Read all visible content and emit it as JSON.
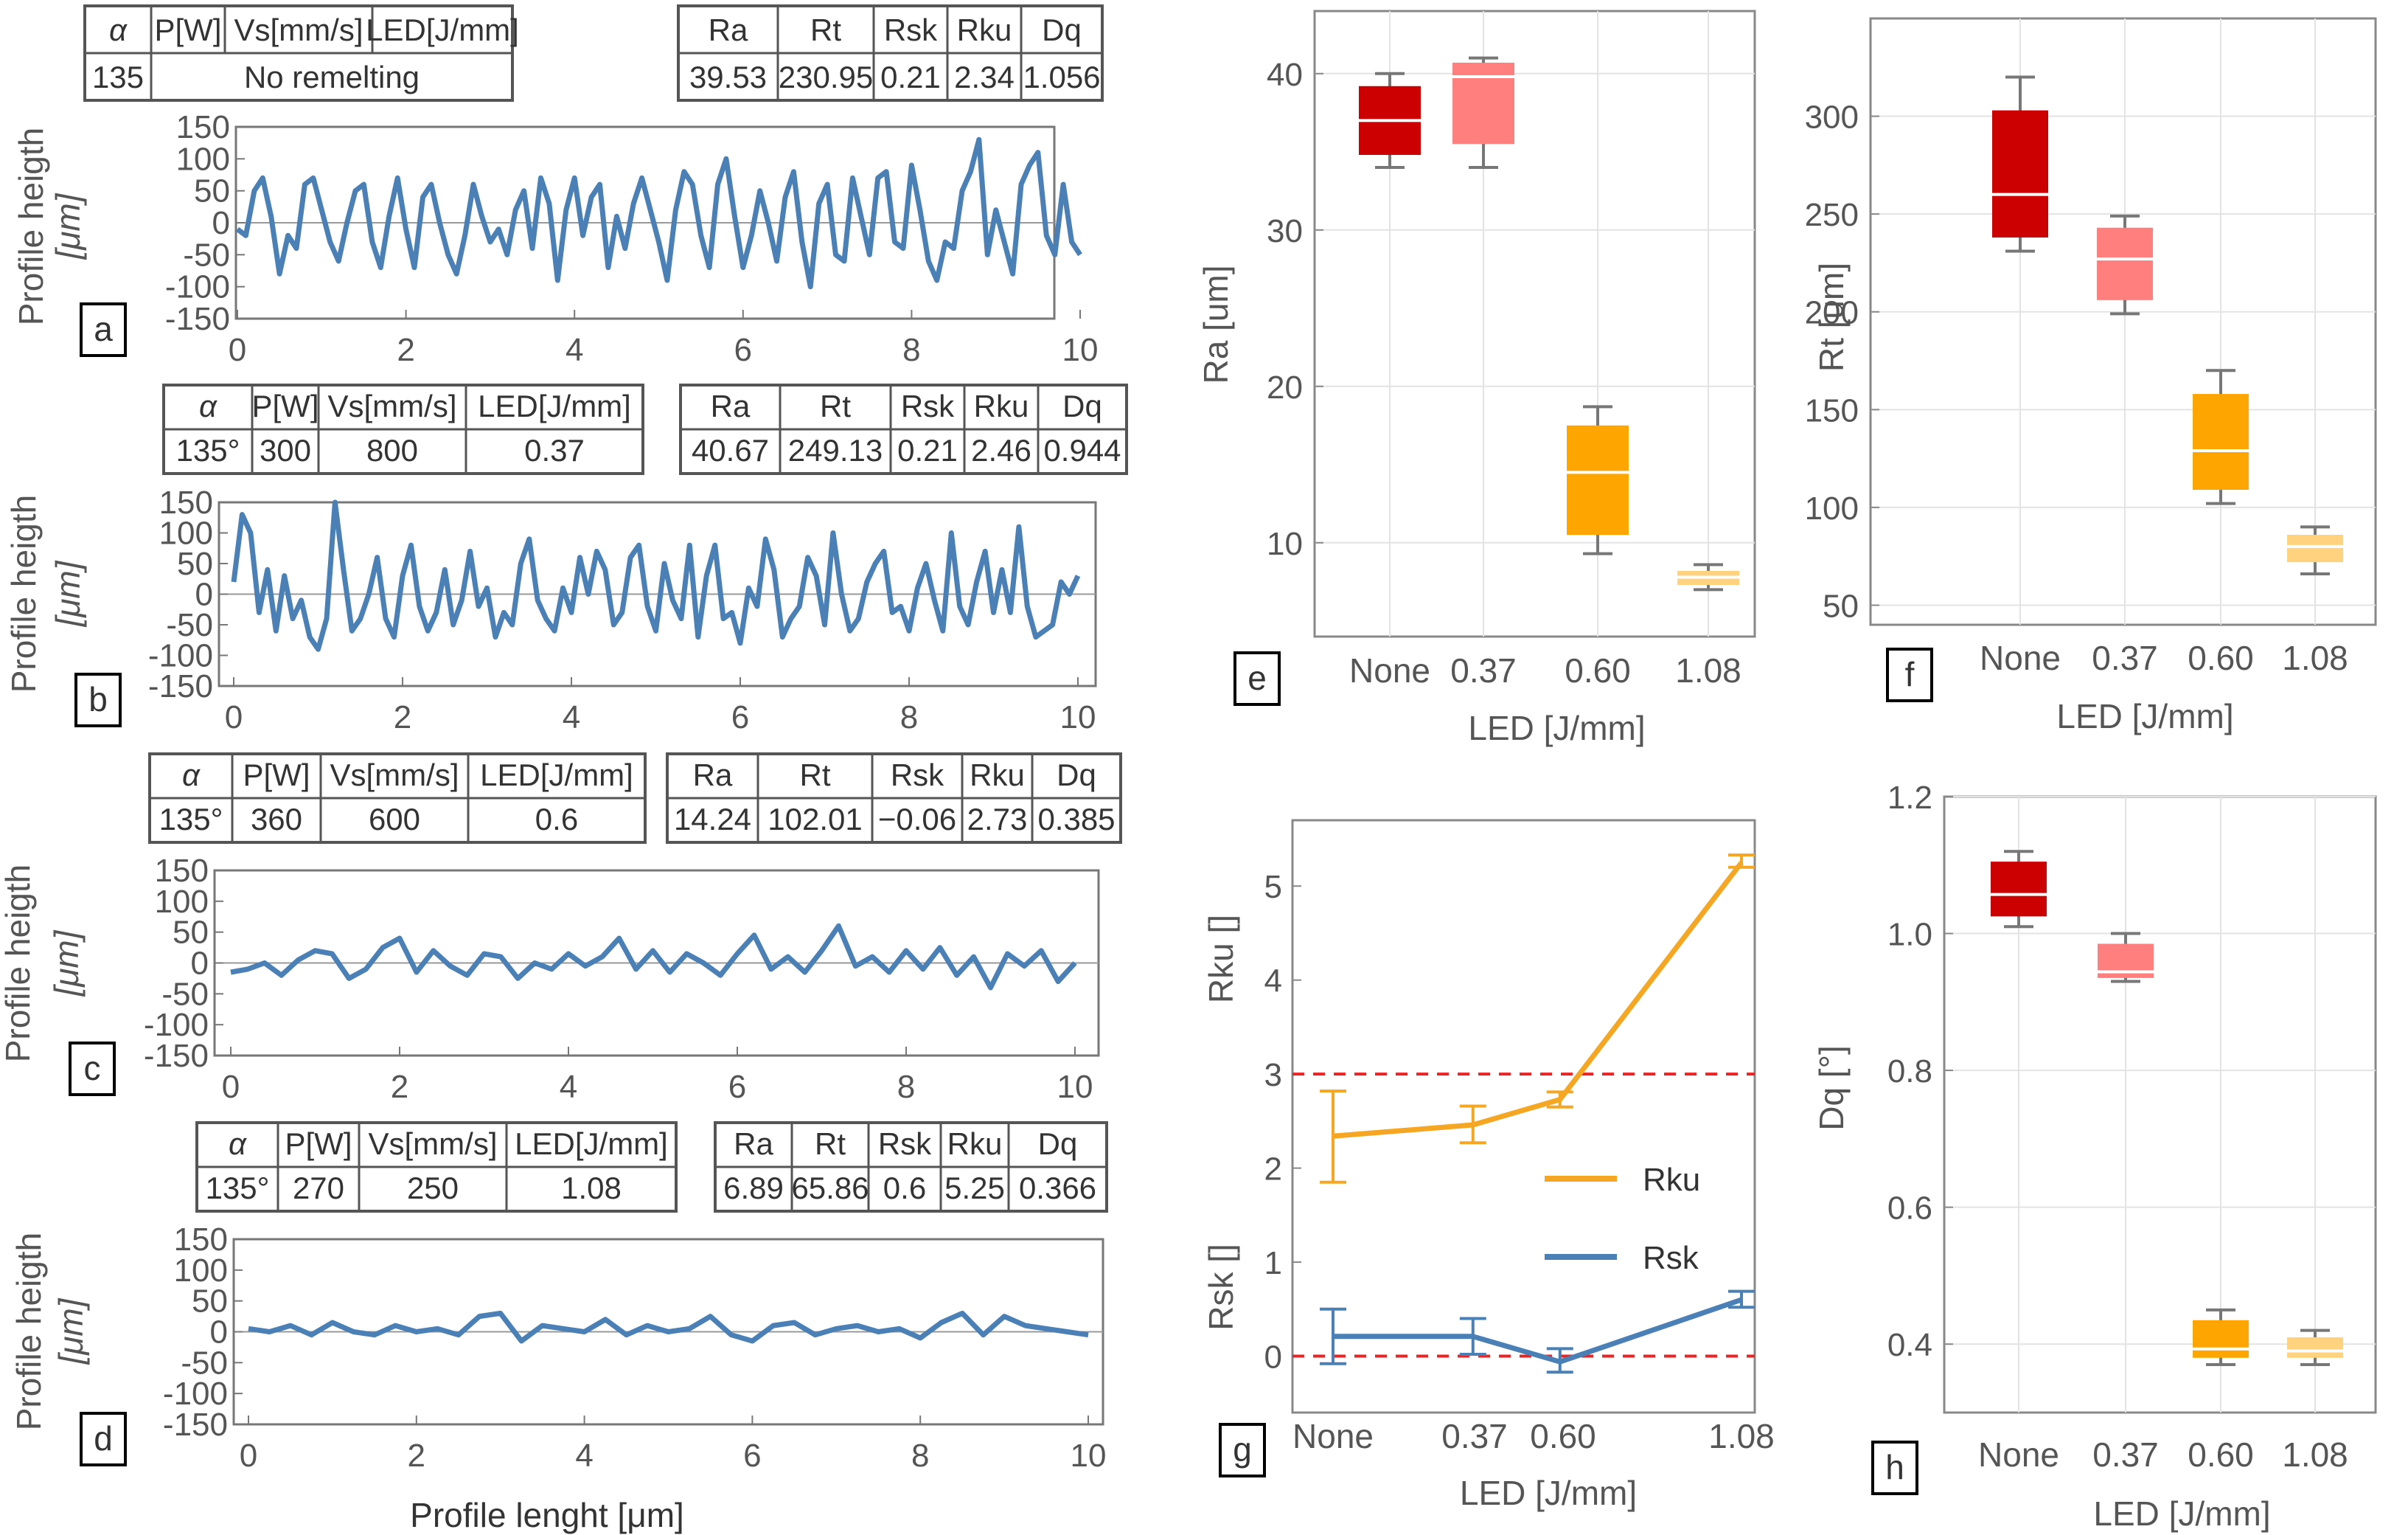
{
  "chart_data": [
    {
      "id": "a",
      "type": "line",
      "panel_label": "a",
      "table_left": {
        "row1": [
          "α",
          "P[W]",
          "Vs[mm/s]",
          "LED[J/mm]"
        ],
        "row2": [
          "135",
          "No remelting"
        ]
      },
      "table_right": {
        "row1": [
          "Ra",
          "Rt",
          "Rsk",
          "Rku",
          "Dq"
        ],
        "row2": [
          "39.53",
          "230.95",
          "0.21",
          "2.34",
          "1.056"
        ]
      },
      "ylabel_line1": "Profile heigth",
      "ylabel_line2": "[μm]",
      "xlim": [
        0,
        10
      ],
      "ylim": [
        -150,
        150
      ],
      "yticks": [
        "150",
        "100",
        "50",
        "0",
        "-50",
        "-100",
        "-150"
      ],
      "xticks": [
        "0",
        "2",
        "4",
        "6",
        "8",
        "10"
      ],
      "series": [
        {
          "name": "profile",
          "color": "#4a80b5",
          "x": [
            0,
            0.1,
            0.2,
            0.3,
            0.4,
            0.5,
            0.6,
            0.7,
            0.8,
            0.9,
            1,
            1.1,
            1.2,
            1.3,
            1.4,
            1.5,
            1.6,
            1.7,
            1.8,
            1.9,
            2,
            2.1,
            2.2,
            2.3,
            2.4,
            2.5,
            2.6,
            2.7,
            2.8,
            2.9,
            3,
            3.1,
            3.2,
            3.3,
            3.4,
            3.5,
            3.6,
            3.7,
            3.8,
            3.9,
            4,
            4.1,
            4.2,
            4.3,
            4.4,
            4.5,
            4.6,
            4.7,
            4.8,
            4.9,
            5,
            5.1,
            5.2,
            5.3,
            5.4,
            5.5,
            5.6,
            5.7,
            5.8,
            5.9,
            6,
            6.1,
            6.2,
            6.3,
            6.4,
            6.5,
            6.6,
            6.7,
            6.8,
            6.9,
            7,
            7.1,
            7.2,
            7.3,
            7.4,
            7.5,
            7.6,
            7.7,
            7.8,
            7.9,
            8,
            8.1,
            8.2,
            8.3,
            8.4,
            8.5,
            8.6,
            8.7,
            8.8,
            8.9,
            9,
            9.1,
            9.2,
            9.3,
            9.4,
            9.5,
            9.6,
            9.7,
            9.8,
            9.9,
            10
          ],
          "y": [
            -10,
            -20,
            50,
            70,
            10,
            -80,
            -20,
            -40,
            60,
            70,
            20,
            -30,
            -60,
            0,
            50,
            60,
            -30,
            -70,
            10,
            70,
            -10,
            -70,
            40,
            60,
            0,
            -50,
            -80,
            -20,
            60,
            10,
            -30,
            -10,
            -50,
            20,
            50,
            -40,
            70,
            30,
            -90,
            20,
            70,
            -20,
            40,
            60,
            -70,
            10,
            -40,
            30,
            70,
            20,
            -30,
            -90,
            20,
            80,
            60,
            -20,
            -70,
            60,
            100,
            10,
            -70,
            -20,
            50,
            0,
            -60,
            40,
            80,
            -30,
            -100,
            30,
            60,
            -50,
            -60,
            70,
            10,
            -50,
            70,
            80,
            -30,
            -40,
            90,
            20,
            -60,
            -90,
            -30,
            -40,
            50,
            80,
            130,
            -50,
            20,
            -30,
            -80,
            60,
            90,
            110,
            -20,
            -50,
            60,
            -30,
            -50
          ]
        }
      ]
    },
    {
      "id": "b",
      "type": "line",
      "panel_label": "b",
      "table_left": {
        "row1": [
          "α",
          "P[W]",
          "Vs[mm/s]",
          "LED[J/mm]"
        ],
        "row2": [
          "135°",
          "300",
          "800",
          "0.37"
        ]
      },
      "table_right": {
        "row1": [
          "Ra",
          "Rt",
          "Rsk",
          "Rku",
          "Dq"
        ],
        "row2": [
          "40.67",
          "249.13",
          "0.21",
          "2.46",
          "0.944"
        ]
      },
      "ylabel_line1": "Profile heigth",
      "ylabel_line2": "[μm]",
      "xlim": [
        0,
        10
      ],
      "ylim": [
        -150,
        150
      ],
      "yticks": [
        "150",
        "100",
        "50",
        "0",
        "-50",
        "-100",
        "-150"
      ],
      "xticks": [
        "0",
        "2",
        "4",
        "6",
        "8",
        "10"
      ],
      "series": [
        {
          "name": "profile",
          "color": "#4a80b5",
          "x": [
            0,
            0.1,
            0.2,
            0.3,
            0.4,
            0.5,
            0.6,
            0.7,
            0.8,
            0.9,
            1,
            1.1,
            1.2,
            1.3,
            1.4,
            1.5,
            1.6,
            1.7,
            1.8,
            1.9,
            2,
            2.1,
            2.2,
            2.3,
            2.4,
            2.5,
            2.6,
            2.7,
            2.8,
            2.9,
            3,
            3.1,
            3.2,
            3.3,
            3.4,
            3.5,
            3.6,
            3.7,
            3.8,
            3.9,
            4,
            4.1,
            4.2,
            4.3,
            4.4,
            4.5,
            4.6,
            4.7,
            4.8,
            4.9,
            5,
            5.1,
            5.2,
            5.3,
            5.4,
            5.5,
            5.6,
            5.7,
            5.8,
            5.9,
            6,
            6.1,
            6.2,
            6.3,
            6.4,
            6.5,
            6.6,
            6.7,
            6.8,
            6.9,
            7,
            7.1,
            7.2,
            7.3,
            7.4,
            7.5,
            7.6,
            7.7,
            7.8,
            7.9,
            8,
            8.1,
            8.2,
            8.3,
            8.4,
            8.5,
            8.6,
            8.7,
            8.8,
            8.9,
            9,
            9.1,
            9.2,
            9.3,
            9.4,
            9.5,
            9.6,
            9.7,
            9.8,
            9.9,
            10
          ],
          "y": [
            20,
            130,
            100,
            -30,
            40,
            -60,
            30,
            -40,
            -10,
            -70,
            -90,
            -40,
            150,
            40,
            -60,
            -40,
            0,
            60,
            -40,
            -70,
            30,
            80,
            -20,
            -60,
            -30,
            40,
            -50,
            -10,
            70,
            -20,
            10,
            -70,
            -30,
            -50,
            50,
            90,
            -10,
            -40,
            -60,
            10,
            -30,
            60,
            0,
            70,
            40,
            -50,
            -30,
            60,
            80,
            -20,
            -60,
            50,
            -10,
            -40,
            80,
            -70,
            30,
            80,
            -40,
            -30,
            -80,
            10,
            -20,
            90,
            40,
            -70,
            -40,
            -20,
            60,
            30,
            -50,
            100,
            0,
            -60,
            -40,
            20,
            50,
            70,
            -30,
            -20,
            -60,
            10,
            50,
            -10,
            -60,
            100,
            -20,
            -50,
            20,
            70,
            -30,
            40,
            -30,
            110,
            -20,
            -70,
            -60,
            -50,
            20,
            0,
            30
          ]
        }
      ]
    },
    {
      "id": "c",
      "type": "line",
      "panel_label": "c",
      "table_left": {
        "row1": [
          "α",
          "P[W]",
          "Vs[mm/s]",
          "LED[J/mm]"
        ],
        "row2": [
          "135°",
          "360",
          "600",
          "0.6"
        ]
      },
      "table_right": {
        "row1": [
          "Ra",
          "Rt",
          "Rsk",
          "Rku",
          "Dq"
        ],
        "row2": [
          "14.24",
          "102.01",
          "−0.06",
          "2.73",
          "0.385"
        ]
      },
      "ylabel_line1": "Profile heigth",
      "ylabel_line2": "[μm]",
      "xlim": [
        0,
        10
      ],
      "ylim": [
        -150,
        150
      ],
      "yticks": [
        "150",
        "100",
        "50",
        "0",
        "-50",
        "-100",
        "-150"
      ],
      "xticks": [
        "0",
        "2",
        "4",
        "6",
        "8",
        "10"
      ],
      "series": [
        {
          "name": "profile",
          "color": "#4a80b5",
          "x": [
            0,
            0.2,
            0.4,
            0.6,
            0.8,
            1,
            1.2,
            1.4,
            1.6,
            1.8,
            2,
            2.2,
            2.4,
            2.6,
            2.8,
            3,
            3.2,
            3.4,
            3.6,
            3.8,
            4,
            4.2,
            4.4,
            4.6,
            4.8,
            5,
            5.2,
            5.4,
            5.6,
            5.8,
            6,
            6.2,
            6.4,
            6.6,
            6.8,
            7,
            7.2,
            7.4,
            7.6,
            7.8,
            8,
            8.2,
            8.4,
            8.6,
            8.8,
            9,
            9.2,
            9.4,
            9.6,
            9.8,
            10
          ],
          "y": [
            -15,
            -10,
            0,
            -20,
            5,
            20,
            15,
            -25,
            -10,
            25,
            40,
            -15,
            20,
            -5,
            -20,
            15,
            10,
            -25,
            0,
            -10,
            15,
            -5,
            10,
            40,
            -10,
            20,
            -15,
            15,
            0,
            -20,
            15,
            45,
            -10,
            10,
            -15,
            20,
            60,
            -5,
            10,
            -15,
            20,
            -10,
            25,
            -20,
            10,
            -40,
            15,
            -5,
            20,
            -30,
            0
          ]
        }
      ]
    },
    {
      "id": "d",
      "type": "line",
      "panel_label": "d",
      "table_left": {
        "row1": [
          "α",
          "P[W]",
          "Vs[mm/s]",
          "LED[J/mm]"
        ],
        "row2": [
          "135°",
          "270",
          "250",
          "1.08"
        ]
      },
      "table_right": {
        "row1": [
          "Ra",
          "Rt",
          "Rsk",
          "Rku",
          "Dq"
        ],
        "row2": [
          "6.89",
          "65.86",
          "0.6",
          "5.25",
          "0.366"
        ]
      },
      "ylabel_line1": "Profile heigth",
      "ylabel_line2": "[μm]",
      "xlabel": "Profile lenght [μm]",
      "xlim": [
        0,
        10
      ],
      "ylim": [
        -150,
        150
      ],
      "yticks": [
        "150",
        "100",
        "50",
        "0",
        "-50",
        "-100",
        "-150"
      ],
      "xticks": [
        "0",
        "2",
        "4",
        "6",
        "8",
        "10"
      ],
      "series": [
        {
          "name": "profile",
          "color": "#4a80b5",
          "x": [
            0,
            0.25,
            0.5,
            0.75,
            1,
            1.25,
            1.5,
            1.75,
            2,
            2.25,
            2.5,
            2.75,
            3,
            3.25,
            3.5,
            3.75,
            4,
            4.25,
            4.5,
            4.75,
            5,
            5.25,
            5.5,
            5.75,
            6,
            6.25,
            6.5,
            6.75,
            7,
            7.25,
            7.5,
            7.75,
            8,
            8.25,
            8.5,
            8.75,
            9,
            9.25,
            9.5,
            9.75,
            10
          ],
          "y": [
            5,
            0,
            10,
            -5,
            15,
            0,
            -5,
            10,
            0,
            5,
            -5,
            25,
            30,
            -15,
            10,
            5,
            0,
            20,
            -5,
            10,
            0,
            5,
            25,
            -5,
            -15,
            10,
            15,
            -5,
            5,
            10,
            0,
            5,
            -10,
            15,
            30,
            -5,
            25,
            10,
            5,
            0,
            -5
          ]
        }
      ]
    },
    {
      "id": "e",
      "type": "box",
      "panel_label": "e",
      "categories": [
        "None",
        "0.37",
        "0.60",
        "1.08"
      ],
      "xlabel": "LED [J/mm]",
      "ylabel": "Ra [um]",
      "ylim": [
        4,
        44
      ],
      "yticks": [
        "10",
        "20",
        "30",
        "40"
      ],
      "boxes": [
        {
          "min": 34,
          "q1": 34.8,
          "median": 37,
          "q3": 39.2,
          "max": 40,
          "color": "#cc0000"
        },
        {
          "min": 34,
          "q1": 35.5,
          "median": 39.8,
          "q3": 40.7,
          "max": 41,
          "color": "#ff7f7f"
        },
        {
          "min": 9.3,
          "q1": 10.5,
          "median": 14.5,
          "q3": 17.5,
          "max": 18.7,
          "color": "#ffa500"
        },
        {
          "min": 7,
          "q1": 7.3,
          "median": 7.8,
          "q3": 8.2,
          "max": 8.6,
          "color": "#ffd280"
        }
      ]
    },
    {
      "id": "f",
      "type": "box",
      "panel_label": "f",
      "categories": [
        "None",
        "0.37",
        "0.60",
        "1.08"
      ],
      "xlabel": "LED [J/mm]",
      "ylabel": "Rt [um]",
      "ylim": [
        40,
        350
      ],
      "yticks": [
        "50",
        "100",
        "150",
        "200",
        "250",
        "300"
      ],
      "boxes": [
        {
          "min": 231,
          "q1": 238,
          "median": 260,
          "q3": 303,
          "max": 320,
          "color": "#cc0000"
        },
        {
          "min": 199,
          "q1": 206,
          "median": 227,
          "q3": 243,
          "max": 249,
          "color": "#ff7f7f"
        },
        {
          "min": 102,
          "q1": 109,
          "median": 129,
          "q3": 158,
          "max": 170,
          "color": "#ffa500"
        },
        {
          "min": 66,
          "q1": 72,
          "median": 80,
          "q3": 86,
          "max": 90,
          "color": "#ffd280"
        }
      ]
    },
    {
      "id": "g",
      "type": "line",
      "panel_label": "g",
      "categories": [
        "None",
        "0.37",
        "0.60",
        "1.08"
      ],
      "x": [
        0,
        0.37,
        0.6,
        1.08
      ],
      "xlabel": "LED [J/mm]",
      "ylabel_upper": "Rku []",
      "ylabel_lower": "Rsk []",
      "ylim": [
        -0.6,
        5.7
      ],
      "yticks": [
        "0",
        "1",
        "2",
        "3",
        "4",
        "5"
      ],
      "reference_lines": [
        3,
        0
      ],
      "series": [
        {
          "name": "Rku",
          "color": "#f5a623",
          "values": [
            2.34,
            2.46,
            2.73,
            5.25
          ],
          "err_low": [
            1.85,
            2.27,
            2.65,
            5.2
          ],
          "err_high": [
            2.82,
            2.66,
            2.81,
            5.33
          ]
        },
        {
          "name": "Rsk",
          "color": "#4a80b5",
          "values": [
            0.21,
            0.21,
            -0.06,
            0.6
          ],
          "err_low": [
            -0.08,
            0.02,
            -0.17,
            0.52
          ],
          "err_high": [
            0.5,
            0.4,
            0.08,
            0.69
          ]
        }
      ]
    },
    {
      "id": "h",
      "type": "box",
      "panel_label": "h",
      "categories": [
        "None",
        "0.37",
        "0.60",
        "1.08"
      ],
      "xlabel": "LED [J/mm]",
      "ylabel": "Dq [°]",
      "ylim": [
        0.3,
        1.2
      ],
      "yticks": [
        "0.4",
        "0.6",
        "0.8",
        "1.0",
        "1.2"
      ],
      "boxes": [
        {
          "min": 1.01,
          "q1": 1.025,
          "median": 1.057,
          "q3": 1.105,
          "max": 1.12,
          "color": "#cc0000"
        },
        {
          "min": 0.93,
          "q1": 0.935,
          "median": 0.944,
          "q3": 0.985,
          "max": 1.0,
          "color": "#ff7f7f"
        },
        {
          "min": 0.37,
          "q1": 0.38,
          "median": 0.393,
          "q3": 0.435,
          "max": 0.45,
          "color": "#ffa500"
        },
        {
          "min": 0.37,
          "q1": 0.38,
          "median": 0.39,
          "q3": 0.41,
          "max": 0.42,
          "color": "#ffd280"
        }
      ]
    }
  ]
}
